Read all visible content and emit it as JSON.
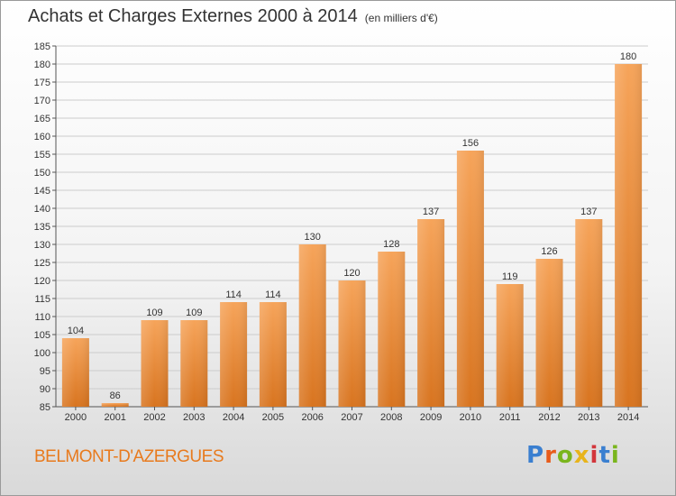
{
  "header": {
    "title": "Achats et Charges Externes 2000 à 2014",
    "subtitle": "(en milliers d'€)"
  },
  "footer": {
    "commune": "BELMONT-D'AZERGUES",
    "logo_text": "Proxiti",
    "logo_colors": [
      "#3a7fd0",
      "#e85c1b",
      "#7ab51d",
      "#e8b41b",
      "#d2353b",
      "#3a7fd0",
      "#7ab51d"
    ]
  },
  "colors": {
    "bar_light": "#f6a45a",
    "bar_dark": "#d8741f",
    "grid": "#cccccc",
    "axis": "#555555"
  },
  "chart_data": {
    "type": "bar",
    "title": "Achats et Charges Externes 2000 à 2014",
    "subtitle": "(en milliers d'€)",
    "categories": [
      "2000",
      "2001",
      "2002",
      "2003",
      "2004",
      "2005",
      "2006",
      "2007",
      "2008",
      "2009",
      "2010",
      "2011",
      "2012",
      "2013",
      "2014"
    ],
    "values": [
      104,
      86,
      109,
      109,
      114,
      114,
      130,
      120,
      128,
      137,
      156,
      119,
      126,
      137,
      180
    ],
    "ylim": [
      85,
      185
    ],
    "ytick_step": 5,
    "grid": true,
    "xlabel": "",
    "ylabel": ""
  }
}
